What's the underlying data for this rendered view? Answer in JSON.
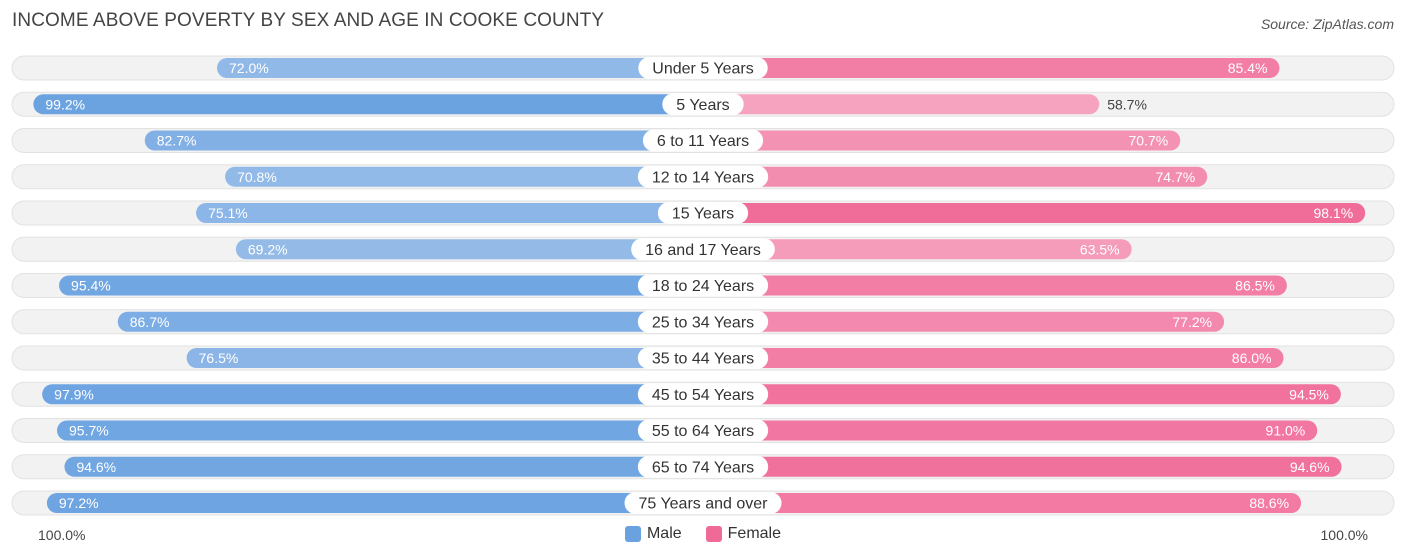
{
  "title": "INCOME ABOVE POVERTY BY SEX AND AGE IN COOKE COUNTY",
  "source": "Source: ZipAtlas.com",
  "colors": {
    "male": "#6aa2e0",
    "male_light": "#a8c7ec",
    "female": "#f06a98",
    "female_light": "#f6a8c3",
    "track": "#f0f0f0"
  },
  "legend": {
    "male": "Male",
    "female": "Female"
  },
  "axis": {
    "left_label": "100.0%",
    "right_label": "100.0%"
  },
  "chart_data": {
    "type": "bar",
    "orientation": "diverging-horizontal",
    "title": "INCOME ABOVE POVERTY BY SEX AND AGE IN COOKE COUNTY",
    "xlim": [
      0,
      100
    ],
    "categories": [
      "Under 5 Years",
      "5 Years",
      "6 to 11 Years",
      "12 to 14 Years",
      "15 Years",
      "16 and 17 Years",
      "18 to 24 Years",
      "25 to 34 Years",
      "35 to 44 Years",
      "45 to 54 Years",
      "55 to 64 Years",
      "65 to 74 Years",
      "75 Years and over"
    ],
    "series": [
      {
        "name": "Male",
        "values": [
          72.0,
          99.2,
          82.7,
          70.8,
          75.1,
          69.2,
          95.4,
          86.7,
          76.5,
          97.9,
          95.7,
          94.6,
          97.2
        ],
        "labels": [
          "72.0%",
          "99.2%",
          "82.7%",
          "70.8%",
          "75.1%",
          "69.2%",
          "95.4%",
          "86.7%",
          "76.5%",
          "97.9%",
          "95.7%",
          "94.6%",
          "97.2%"
        ]
      },
      {
        "name": "Female",
        "values": [
          85.4,
          58.7,
          70.7,
          74.7,
          98.1,
          63.5,
          86.5,
          77.2,
          86.0,
          94.5,
          91.0,
          94.6,
          88.6
        ],
        "labels": [
          "85.4%",
          "58.7%",
          "70.7%",
          "74.7%",
          "98.1%",
          "63.5%",
          "86.5%",
          "77.2%",
          "86.0%",
          "94.5%",
          "91.0%",
          "94.6%",
          "88.6%"
        ]
      }
    ]
  }
}
